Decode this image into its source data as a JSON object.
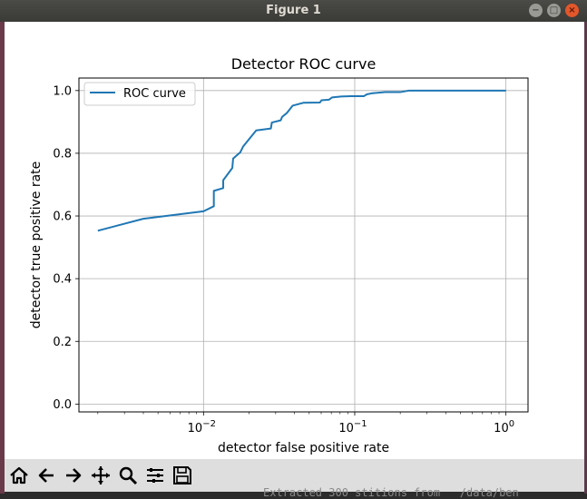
{
  "window": {
    "title": "Figure 1"
  },
  "toolbar": {
    "buttons": [
      {
        "name": "home-icon"
      },
      {
        "name": "back-icon"
      },
      {
        "name": "forward-icon"
      },
      {
        "name": "pan-icon"
      },
      {
        "name": "zoom-icon"
      },
      {
        "name": "subplots-icon"
      },
      {
        "name": "save-icon"
      }
    ]
  },
  "terminal": {
    "text": "Extracted 300 stitions from   /data/ben"
  },
  "chart_data": {
    "type": "line",
    "title": "Detector ROC curve",
    "xlabel": "detector false positive rate",
    "ylabel": "detector true positive rate",
    "xscale": "log",
    "xlim": [
      0.0015,
      1.4
    ],
    "ylim": [
      -0.025,
      1.04
    ],
    "grid": true,
    "legend_position": "top-left",
    "xticks": [
      {
        "value": 0.01,
        "base": "10",
        "exp": "−2"
      },
      {
        "value": 0.1,
        "base": "10",
        "exp": "−1"
      },
      {
        "value": 1,
        "base": "10",
        "exp": "0"
      }
    ],
    "yticks": [
      "0.0",
      "0.2",
      "0.4",
      "0.6",
      "0.8",
      "1.0"
    ],
    "series": [
      {
        "name": "ROC curve",
        "color": "#1f77b4",
        "x": [
          0.002,
          0.004,
          0.01,
          0.0117,
          0.0117,
          0.0135,
          0.0135,
          0.0155,
          0.0157,
          0.0175,
          0.0183,
          0.0223,
          0.0279,
          0.0283,
          0.0324,
          0.0331,
          0.0355,
          0.0389,
          0.0457,
          0.0589,
          0.0603,
          0.0676,
          0.0708,
          0.0813,
          0.0933,
          0.1148,
          0.1202,
          0.1288,
          0.1585,
          0.1995,
          0.2291,
          1.0
        ],
        "y": [
          0.553,
          0.591,
          0.615,
          0.631,
          0.68,
          0.689,
          0.714,
          0.753,
          0.783,
          0.803,
          0.822,
          0.873,
          0.879,
          0.898,
          0.905,
          0.916,
          0.928,
          0.952,
          0.961,
          0.962,
          0.969,
          0.971,
          0.978,
          0.981,
          0.982,
          0.982,
          0.988,
          0.991,
          0.995,
          0.995,
          1.0,
          1.0
        ]
      }
    ]
  }
}
